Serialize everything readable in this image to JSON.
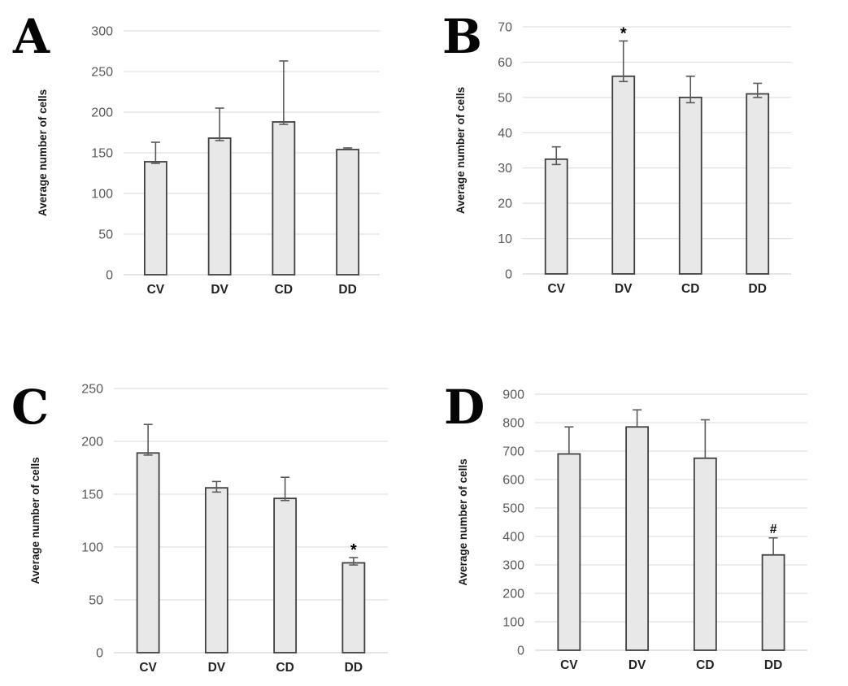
{
  "figure": {
    "description": "Four-panel bar chart figure comparing average number of cells across four groups",
    "panels": [
      "A",
      "B",
      "C",
      "D"
    ]
  },
  "colors": {
    "background": "#ffffff",
    "bar_fill": "#e9e8e8",
    "bar_stroke": "#404040",
    "error_bar": "#595959",
    "gridline": "#d9d9d9",
    "baseline": "#c8c8c8",
    "tick_label": "#595959",
    "category_label": "#222222",
    "axis_title": "#1a1a1a",
    "annotation": "#000000",
    "panel_letter": "#050505"
  },
  "chart_data": [
    {
      "panel_label": "A",
      "type": "bar",
      "title": "",
      "xlabel": "",
      "ylabel": "Average number of cells",
      "categories": [
        "CV",
        "DV",
        "CD",
        "DD"
      ],
      "values": [
        139,
        168,
        188,
        154
      ],
      "errors_up": [
        24,
        37,
        75,
        2
      ],
      "errors_down": [
        2,
        3,
        3,
        0
      ],
      "ylim": [
        0,
        300
      ],
      "ytick_step": 50,
      "grid": true,
      "legend": "none",
      "annotations": []
    },
    {
      "panel_label": "B",
      "type": "bar",
      "title": "",
      "xlabel": "",
      "ylabel": "Average number of cells",
      "categories": [
        "CV",
        "DV",
        "CD",
        "DD"
      ],
      "values": [
        32.5,
        56,
        50,
        51
      ],
      "errors_up": [
        3.5,
        10,
        6,
        3
      ],
      "errors_down": [
        1.5,
        1.5,
        1.5,
        1
      ],
      "ylim": [
        0,
        70
      ],
      "ytick_step": 10,
      "grid": true,
      "legend": "none",
      "annotations": [
        {
          "category": "DV",
          "symbol": "*"
        }
      ]
    },
    {
      "panel_label": "C",
      "type": "bar",
      "title": "",
      "xlabel": "",
      "ylabel": "Average number of cells",
      "categories": [
        "CV",
        "DV",
        "CD",
        "DD"
      ],
      "values": [
        189,
        156,
        146,
        85
      ],
      "errors_up": [
        27,
        6,
        20,
        5
      ],
      "errors_down": [
        2,
        4,
        2,
        2
      ],
      "ylim": [
        0,
        250
      ],
      "ytick_step": 50,
      "grid": true,
      "legend": "none",
      "annotations": [
        {
          "category": "DD",
          "symbol": "*"
        }
      ]
    },
    {
      "panel_label": "D",
      "type": "bar",
      "title": "",
      "xlabel": "",
      "ylabel": "Average number of cells",
      "categories": [
        "CV",
        "DV",
        "CD",
        "DD"
      ],
      "values": [
        690,
        785,
        675,
        335
      ],
      "errors_up": [
        95,
        60,
        135,
        60
      ],
      "errors_down": [
        0,
        0,
        0,
        0
      ],
      "ylim": [
        0,
        900
      ],
      "ytick_step": 100,
      "grid": true,
      "legend": "none",
      "annotations": [
        {
          "category": "DD",
          "symbol": "#"
        }
      ]
    }
  ]
}
